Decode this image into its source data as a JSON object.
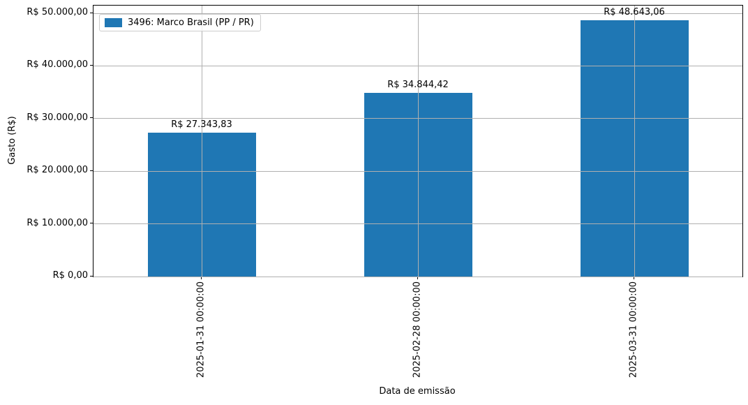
{
  "chart_data": {
    "type": "bar",
    "title": "",
    "xlabel": "Data de emissão",
    "ylabel": "Gasto (R$)",
    "categories": [
      "2025-01-31 00:00:00",
      "2025-02-28 00:00:00",
      "2025-03-31 00:00:00"
    ],
    "series": [
      {
        "name": "3496: Marco Brasil (PP / PR)",
        "values": [
          27343.83,
          34844.42,
          48643.06
        ],
        "color": "#1f77b4"
      }
    ],
    "value_labels": [
      "R$ 27.343,83",
      "R$ 34.844,42",
      "R$ 48.643,06"
    ],
    "y_ticks": [
      {
        "value": 0,
        "label": "R$ 0,00"
      },
      {
        "value": 10000,
        "label": "R$ 10.000,00"
      },
      {
        "value": 20000,
        "label": "R$ 20.000,00"
      },
      {
        "value": 30000,
        "label": "R$ 30.000,00"
      },
      {
        "value": 40000,
        "label": "R$ 40.000,00"
      },
      {
        "value": 50000,
        "label": "R$ 50.000,00"
      }
    ],
    "ylim": [
      0,
      51459
    ],
    "grid": true,
    "grid_color": "#b0b0b0",
    "legend_position": "upper left"
  }
}
